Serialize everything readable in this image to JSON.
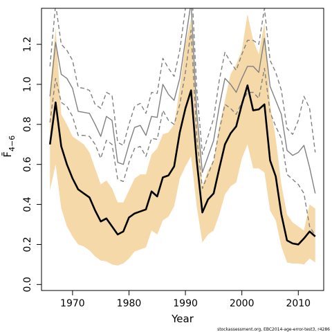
{
  "chart_data": {
    "type": "line",
    "title": "",
    "xlabel": "Year",
    "ylabel": "F̄",
    "ylabel_subscript": "4−6",
    "xlim": [
      1964.5,
      2014.5
    ],
    "ylim": [
      -0.03,
      1.38
    ],
    "xticks": [
      1970,
      1980,
      1990,
      2000,
      2010
    ],
    "yticks": [
      0.0,
      0.2,
      0.4,
      0.6,
      0.8,
      1.0,
      1.2
    ],
    "grid": false,
    "years": [
      1966,
      1967,
      1968,
      1969,
      1970,
      1971,
      1972,
      1973,
      1974,
      1975,
      1976,
      1977,
      1978,
      1979,
      1980,
      1981,
      1982,
      1983,
      1984,
      1985,
      1986,
      1987,
      1988,
      1989,
      1990,
      1991,
      1992,
      1993,
      1994,
      1995,
      1996,
      1997,
      1998,
      1999,
      2000,
      2001,
      2002,
      2003,
      2004,
      2005,
      2006,
      2007,
      2008,
      2009,
      2010,
      2011,
      2012,
      2013
    ],
    "series": [
      {
        "role": "estimate",
        "color": "#000000",
        "values": [
          0.7,
          0.91,
          0.69,
          0.6,
          0.53,
          0.475,
          0.455,
          0.435,
          0.37,
          0.315,
          0.33,
          0.29,
          0.25,
          0.265,
          0.335,
          0.355,
          0.365,
          0.375,
          0.465,
          0.44,
          0.535,
          0.545,
          0.59,
          0.76,
          0.88,
          0.97,
          0.62,
          0.36,
          0.425,
          0.455,
          0.58,
          0.7,
          0.755,
          0.79,
          0.9,
          0.995,
          0.87,
          0.875,
          0.9,
          0.62,
          0.54,
          0.35,
          0.22,
          0.205,
          0.2,
          0.23,
          0.265,
          0.24
        ]
      },
      {
        "role": "confidence-band",
        "color": "#f5d9a9",
        "upper": [
          0.97,
          1.28,
          0.85,
          0.8,
          0.74,
          0.72,
          0.7,
          0.66,
          0.58,
          0.5,
          0.52,
          0.48,
          0.41,
          0.41,
          0.47,
          0.53,
          0.55,
          0.55,
          0.65,
          0.68,
          0.75,
          0.76,
          0.8,
          0.98,
          1.2,
          1.33,
          0.87,
          0.49,
          0.57,
          0.62,
          0.79,
          0.92,
          1.05,
          1.1,
          1.17,
          1.35,
          1.22,
          1.15,
          1.31,
          0.9,
          0.73,
          0.5,
          0.35,
          0.31,
          0.29,
          0.27,
          0.4,
          0.38
        ],
        "lower": [
          0.47,
          0.6,
          0.38,
          0.29,
          0.24,
          0.2,
          0.19,
          0.17,
          0.14,
          0.12,
          0.115,
          0.1,
          0.095,
          0.105,
          0.13,
          0.165,
          0.175,
          0.185,
          0.27,
          0.25,
          0.32,
          0.34,
          0.39,
          0.53,
          0.59,
          0.64,
          0.39,
          0.21,
          0.25,
          0.27,
          0.35,
          0.45,
          0.49,
          0.51,
          0.63,
          0.7,
          0.58,
          0.58,
          0.56,
          0.37,
          0.32,
          0.19,
          0.11,
          0.105,
          0.105,
          0.1,
          0.13,
          0.11
        ]
      },
      {
        "role": "comparison-estimate",
        "color": "#808080",
        "values": [
          0.94,
          1.21,
          1.05,
          1.03,
          0.98,
          0.865,
          0.86,
          0.855,
          0.8,
          0.74,
          0.84,
          0.82,
          0.61,
          0.6,
          0.7,
          0.785,
          0.795,
          0.745,
          0.84,
          0.835,
          1.0,
          0.95,
          0.92,
          1.03,
          1.22,
          1.41,
          0.86,
          0.56,
          0.64,
          0.72,
          0.89,
          1.03,
          1.0,
          0.96,
          1.03,
          1.09,
          1.09,
          1.06,
          1.23,
          0.99,
          0.92,
          0.85,
          0.67,
          0.645,
          0.66,
          0.695,
          0.585,
          0.455
        ]
      },
      {
        "role": "comparison-upper",
        "color": "#808080",
        "values": [
          1.09,
          1.4,
          1.2,
          1.17,
          1.12,
          0.985,
          0.98,
          0.97,
          0.9,
          0.88,
          0.96,
          0.945,
          0.71,
          0.695,
          0.8,
          0.89,
          0.905,
          0.855,
          0.96,
          0.955,
          1.13,
          1.08,
          1.04,
          1.17,
          1.38,
          1.55,
          0.98,
          0.65,
          0.74,
          0.83,
          1.02,
          1.16,
          1.11,
          1.07,
          1.15,
          1.22,
          1.22,
          1.2,
          1.38,
          1.12,
          1.06,
          0.97,
          0.78,
          0.75,
          0.82,
          0.94,
          0.88,
          0.66
        ]
      },
      {
        "role": "comparison-lower",
        "color": "#808080",
        "values": [
          0.81,
          1.03,
          0.91,
          0.89,
          0.84,
          0.745,
          0.745,
          0.74,
          0.7,
          0.63,
          0.72,
          0.7,
          0.525,
          0.515,
          0.61,
          0.68,
          0.69,
          0.64,
          0.73,
          0.725,
          0.87,
          0.82,
          0.8,
          0.9,
          1.06,
          1.27,
          0.74,
          0.48,
          0.55,
          0.62,
          0.77,
          0.9,
          0.88,
          0.85,
          0.91,
          0.96,
          0.96,
          0.93,
          1.08,
          0.86,
          0.79,
          0.73,
          0.55,
          0.525,
          0.5,
          0.455,
          0.29,
          0.245
        ]
      }
    ],
    "credit": "stockassessment.org, EBC2014-age-error-test3, r4286"
  }
}
